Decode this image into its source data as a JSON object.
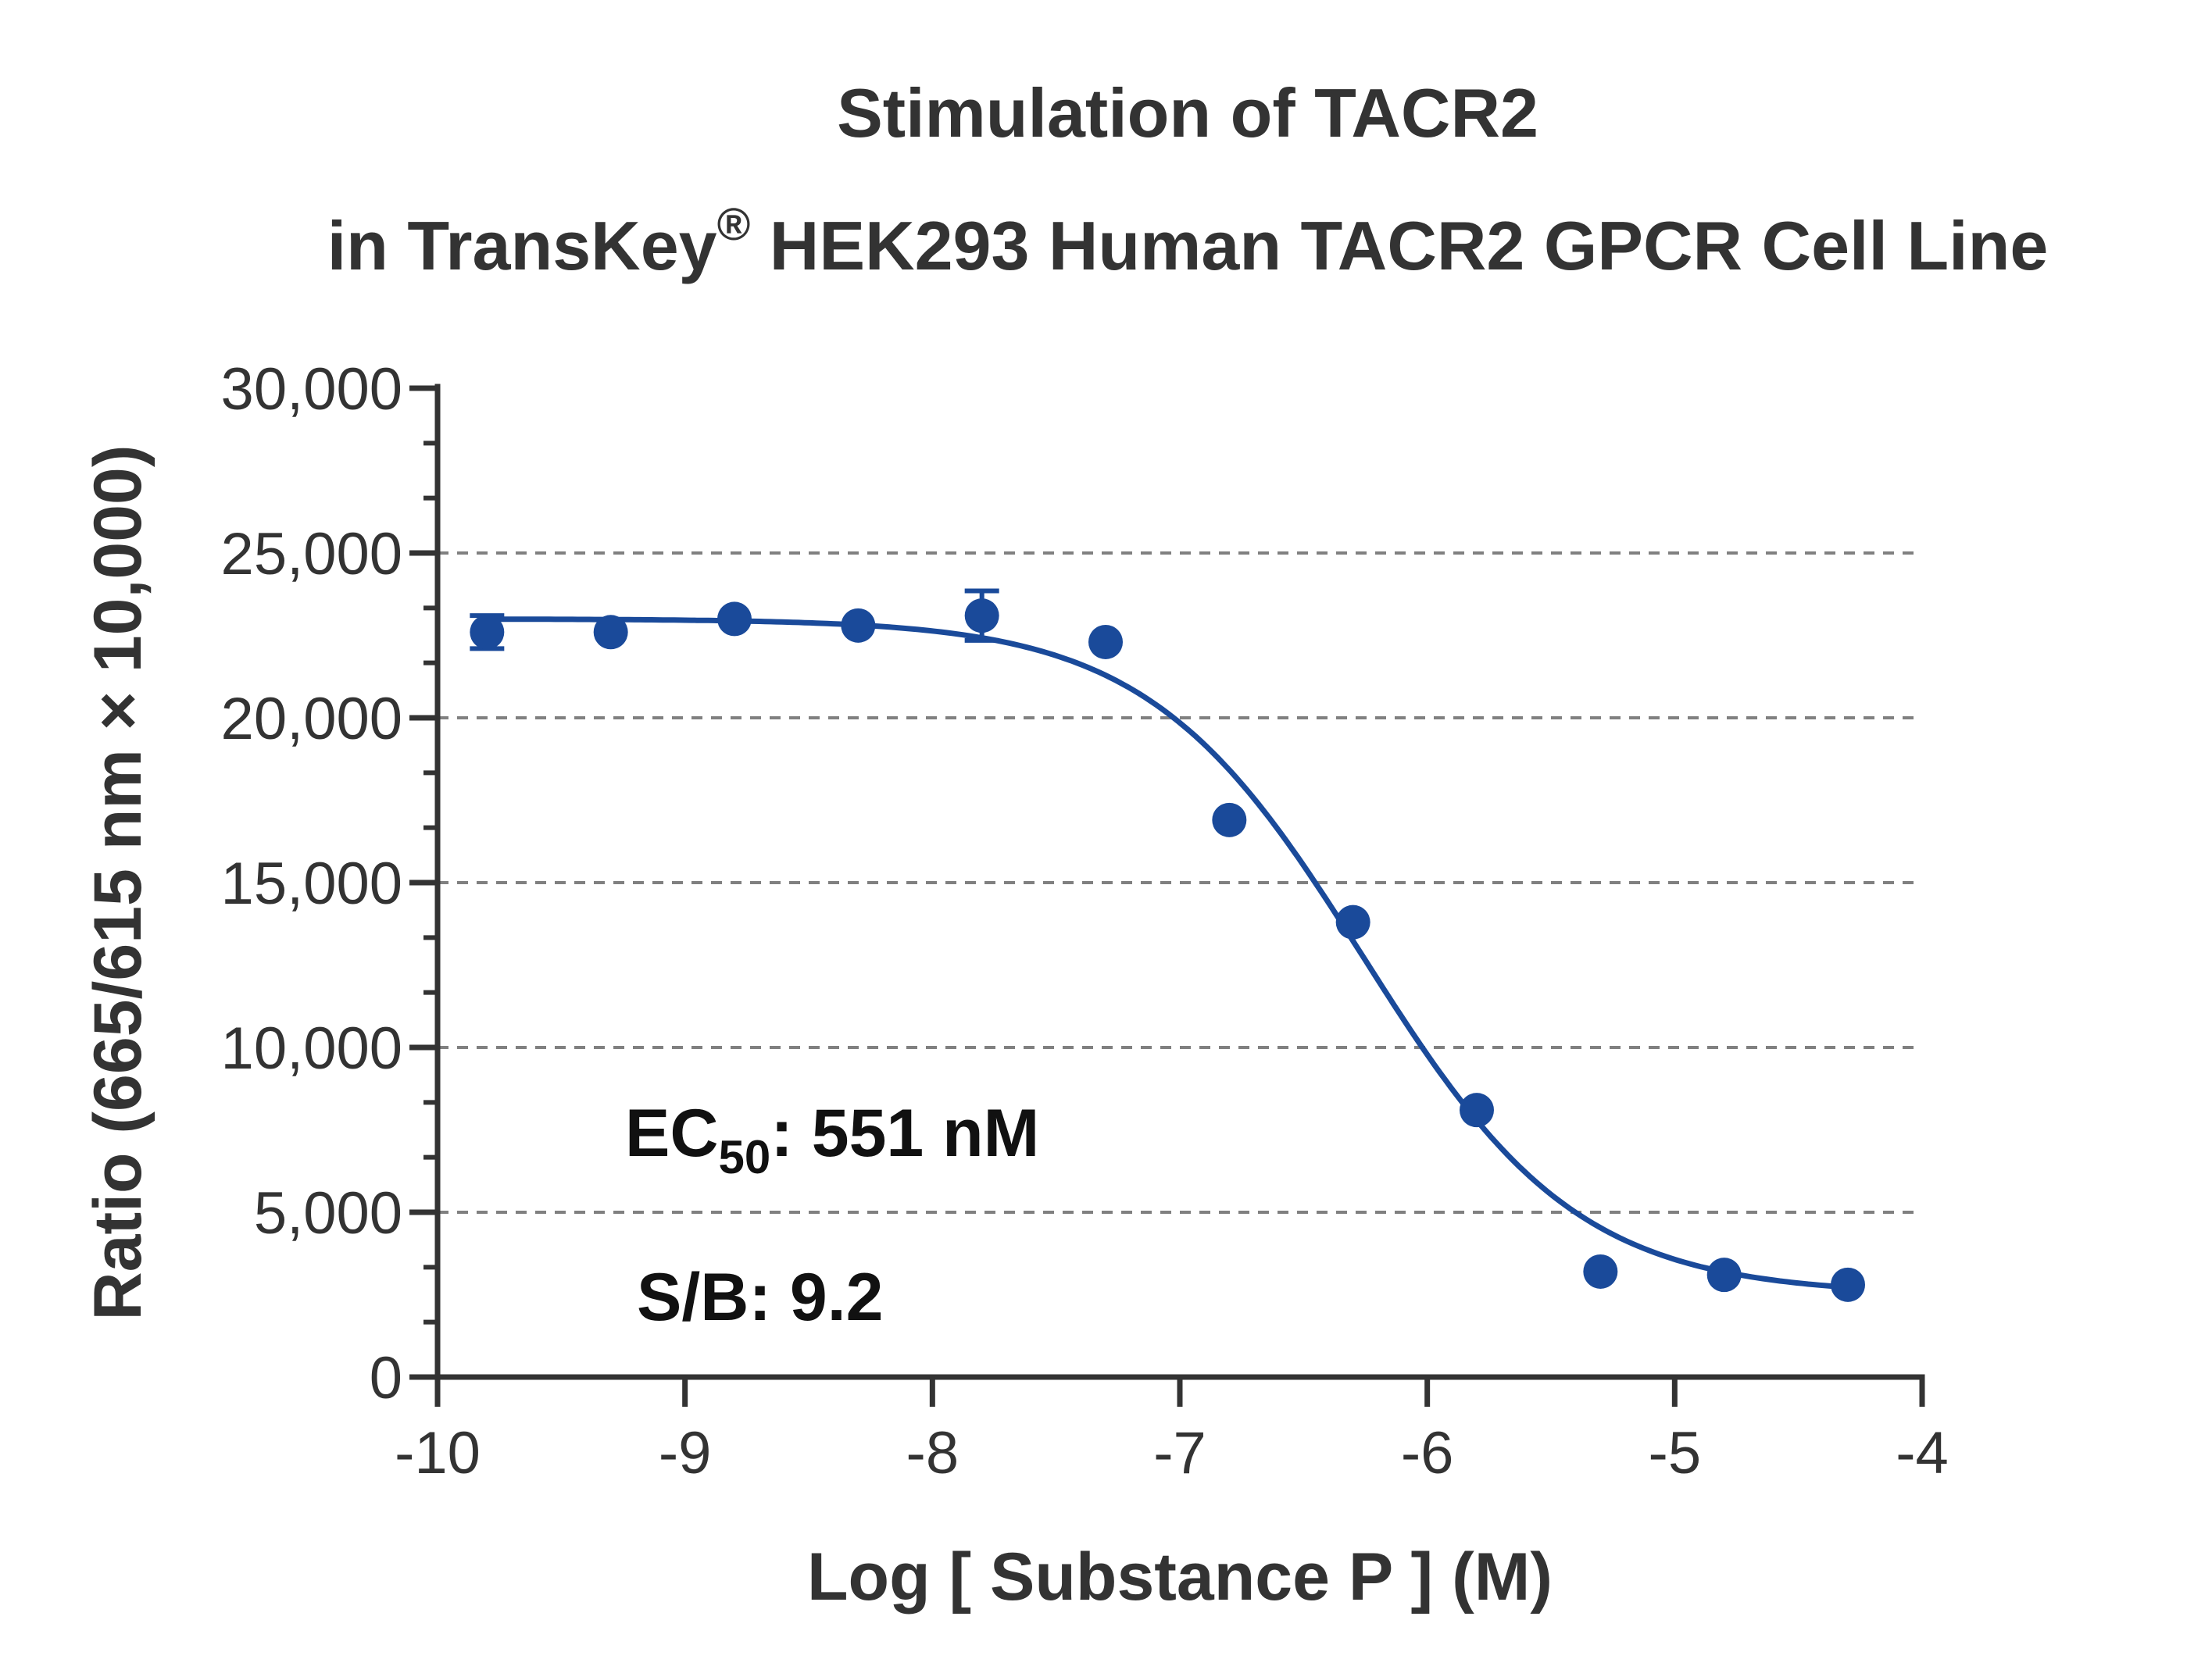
{
  "chart_data": {
    "type": "scatter",
    "title_line1": "Stimulation of  TACR2",
    "title_line2_pre": "in TransKey",
    "title_line2_reg": "®",
    "title_line2_post": " HEK293 Human TACR2 GPCR Cell Line",
    "xlabel": "Log [ Substance P ]  (M)",
    "ylabel": "Ratio (665/615 nm × 10,000)",
    "xlim": [
      -10,
      -4
    ],
    "ylim": [
      0,
      30000
    ],
    "x_ticks": [
      -10,
      -9,
      -8,
      -7,
      -6,
      -5,
      -4
    ],
    "x_tick_labels": [
      "-10",
      "-9",
      "-8",
      "-7",
      "-6",
      "-5",
      "-4"
    ],
    "y_ticks": [
      0,
      5000,
      10000,
      15000,
      20000,
      25000,
      30000
    ],
    "y_tick_labels": [
      "0",
      "5,000",
      "10,000",
      "15,000",
      "20,000",
      "25,000",
      "30,000"
    ],
    "gridlines_y": [
      5000,
      10000,
      15000,
      20000,
      25000
    ],
    "grid": "horizontal dashed",
    "color": "#1a4a9a",
    "series": [
      {
        "x": [
          -9.8,
          -9.3,
          -8.8,
          -8.3,
          -7.8,
          -7.3,
          -6.8,
          -6.3,
          -5.8,
          -5.3,
          -4.8,
          -4.3
        ],
        "y": [
          22600,
          22600,
          23000,
          22800,
          23100,
          22300,
          16900,
          13800,
          8100,
          3200,
          3100,
          2800
        ],
        "err": [
          500,
          150,
          150,
          150,
          750,
          150,
          150,
          150,
          150,
          150,
          150,
          150
        ]
      }
    ],
    "fit": {
      "top": 23000,
      "bottom": 2500,
      "ec50_log": -6.259,
      "hill": 1.0
    },
    "annotations": {
      "ec50_prefix": "EC",
      "ec50_sub": "50",
      "ec50_value": ": 551 nM",
      "sb": "S/B: 9.2"
    }
  }
}
